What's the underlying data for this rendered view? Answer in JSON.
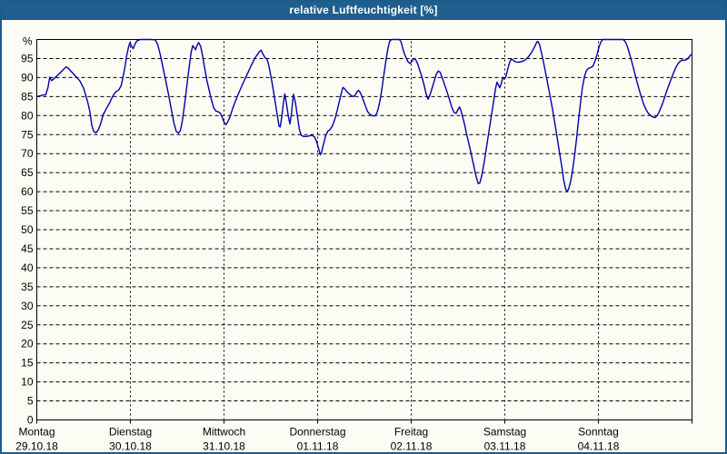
{
  "window": {
    "title": "relative Luftfeuchtigkeit [%]"
  },
  "colors": {
    "titlebar": "#1e5f8e",
    "window_border": "#1d5c89",
    "background": "#fcfcf5",
    "axis": "#000000",
    "grid": "#000000",
    "line": "#0000a8",
    "title_text": "#ffffff",
    "label_text": "#000000"
  },
  "chart_data": {
    "type": "line",
    "title": "relative Luftfeuchtigkeit [%]",
    "ylabel": "%",
    "y_axis_symbol": "%",
    "ylim": [
      0,
      100
    ],
    "yticks": [
      0,
      5,
      10,
      15,
      20,
      25,
      30,
      35,
      40,
      45,
      50,
      55,
      60,
      65,
      70,
      75,
      80,
      85,
      90,
      95
    ],
    "grid": "dashed",
    "x_unit": "hours",
    "xlim": [
      0,
      168
    ],
    "hours_per_day": 24,
    "days": [
      {
        "label": "Montag",
        "date": "29.10.18"
      },
      {
        "label": "Dienstag",
        "date": "30.10.18"
      },
      {
        "label": "Mittwoch",
        "date": "31.10.18"
      },
      {
        "label": "Donnerstag",
        "date": "01.11.18"
      },
      {
        "label": "Freitag",
        "date": "02.11.18"
      },
      {
        "label": "Samstag",
        "date": "03.11.18"
      },
      {
        "label": "Sonntag",
        "date": "04.11.18"
      }
    ],
    "legend": "none",
    "series": [
      {
        "name": "relative Luftfeuchtigkeit",
        "color": "#0000a8",
        "points": [
          [
            0,
            85
          ],
          [
            0.8,
            85.2
          ],
          [
            1.6,
            85.4
          ],
          [
            2.3,
            85.5
          ],
          [
            2.9,
            87.5
          ],
          [
            3.3,
            90.1
          ],
          [
            3.8,
            89.2
          ],
          [
            4.4,
            89.7
          ],
          [
            5,
            90.3
          ],
          [
            6,
            91.3
          ],
          [
            7,
            92.3
          ],
          [
            7.5,
            92.8
          ],
          [
            8,
            92.5
          ],
          [
            9,
            91.4
          ],
          [
            10,
            90.3
          ],
          [
            11,
            89.2
          ],
          [
            12,
            87.2
          ],
          [
            13,
            83.8
          ],
          [
            13.6,
            81
          ],
          [
            14.1,
            77.5
          ],
          [
            14.6,
            75.8
          ],
          [
            15.2,
            75.5
          ],
          [
            15.8,
            76.3
          ],
          [
            16.4,
            78
          ],
          [
            17,
            80.2
          ],
          [
            17.8,
            81.8
          ],
          [
            18.6,
            83.2
          ],
          [
            19.4,
            85
          ],
          [
            20.2,
            86.2
          ],
          [
            21,
            86.7
          ],
          [
            21.6,
            87.8
          ],
          [
            22.1,
            90
          ],
          [
            22.6,
            92.8
          ],
          [
            23,
            95.5
          ],
          [
            23.5,
            98
          ],
          [
            23.9,
            99.2
          ],
          [
            24.3,
            98.2
          ],
          [
            24.7,
            97.6
          ],
          [
            25.1,
            98.6
          ],
          [
            25.6,
            99.6
          ],
          [
            26.5,
            100
          ],
          [
            28,
            100
          ],
          [
            29.5,
            100
          ],
          [
            30.4,
            99.9
          ],
          [
            31,
            98.7
          ],
          [
            31.6,
            96.3
          ],
          [
            32.2,
            93.4
          ],
          [
            33,
            89.5
          ],
          [
            33.8,
            85.4
          ],
          [
            34.5,
            81.5
          ],
          [
            35.2,
            77.8
          ],
          [
            35.8,
            75.8
          ],
          [
            36.3,
            75.4
          ],
          [
            36.8,
            76
          ],
          [
            37.3,
            78.5
          ],
          [
            37.9,
            83
          ],
          [
            38.5,
            88
          ],
          [
            39.1,
            93
          ],
          [
            39.6,
            96.8
          ],
          [
            40,
            98.4
          ],
          [
            40.4,
            97.8
          ],
          [
            40.7,
            97.3
          ],
          [
            41.1,
            98.5
          ],
          [
            41.5,
            99.2
          ],
          [
            42,
            98.2
          ],
          [
            42.5,
            95.8
          ],
          [
            43,
            92.8
          ],
          [
            43.6,
            89.3
          ],
          [
            44.2,
            86.6
          ],
          [
            44.8,
            84
          ],
          [
            45.4,
            82
          ],
          [
            45.9,
            81.2
          ],
          [
            46.5,
            81
          ],
          [
            47,
            80.7
          ],
          [
            47.5,
            79.6
          ],
          [
            48,
            78.3
          ],
          [
            48.5,
            77.6
          ],
          [
            49,
            78.4
          ],
          [
            49.6,
            79.9
          ],
          [
            50.2,
            81.8
          ],
          [
            51,
            84
          ],
          [
            52,
            86.5
          ],
          [
            53,
            88.8
          ],
          [
            54,
            91
          ],
          [
            55,
            93.2
          ],
          [
            56,
            95.2
          ],
          [
            57,
            96.7
          ],
          [
            57.5,
            97.2
          ],
          [
            58,
            96.2
          ],
          [
            58.5,
            95.2
          ],
          [
            59,
            94.9
          ],
          [
            59.4,
            93.6
          ],
          [
            59.8,
            91.6
          ],
          [
            60.2,
            89.3
          ],
          [
            60.7,
            86.3
          ],
          [
            61.2,
            83
          ],
          [
            61.7,
            79.8
          ],
          [
            62.1,
            77.3
          ],
          [
            62.4,
            77
          ],
          [
            62.8,
            79.5
          ],
          [
            63.2,
            83
          ],
          [
            63.6,
            85.7
          ],
          [
            64,
            83.2
          ],
          [
            64.5,
            79.8
          ],
          [
            64.9,
            77.8
          ],
          [
            65.3,
            80.5
          ],
          [
            65.8,
            85.6
          ],
          [
            66.3,
            83.5
          ],
          [
            66.8,
            80
          ],
          [
            67.3,
            76.5
          ],
          [
            67.8,
            74.8
          ],
          [
            68.4,
            74.5
          ],
          [
            69.2,
            74.5
          ],
          [
            70,
            74.7
          ],
          [
            70.6,
            74.8
          ],
          [
            71.2,
            74.4
          ],
          [
            71.7,
            73.3
          ],
          [
            72.2,
            71.5
          ],
          [
            72.7,
            69.7
          ],
          [
            73,
            70.3
          ],
          [
            73.4,
            72
          ],
          [
            74,
            74.5
          ],
          [
            74.6,
            75.9
          ],
          [
            75.2,
            76.3
          ],
          [
            75.8,
            77.3
          ],
          [
            76.4,
            79
          ],
          [
            77,
            81.3
          ],
          [
            77.6,
            83.8
          ],
          [
            78.1,
            86
          ],
          [
            78.5,
            87.4
          ],
          [
            79,
            87
          ],
          [
            79.5,
            86.3
          ],
          [
            80.1,
            85.7
          ],
          [
            80.7,
            85.2
          ],
          [
            81.2,
            85
          ],
          [
            81.7,
            85.5
          ],
          [
            82.2,
            86.4
          ],
          [
            82.5,
            86.6
          ],
          [
            82.9,
            86.1
          ],
          [
            83.3,
            85.2
          ],
          [
            83.8,
            83.9
          ],
          [
            84.3,
            82.4
          ],
          [
            84.8,
            81.1
          ],
          [
            85.4,
            80.3
          ],
          [
            86,
            80
          ],
          [
            86.6,
            79.9
          ],
          [
            87.1,
            80.4
          ],
          [
            87.6,
            82
          ],
          [
            88.1,
            84.5
          ],
          [
            88.6,
            87.8
          ],
          [
            89.1,
            91.5
          ],
          [
            89.6,
            95
          ],
          [
            90.1,
            98
          ],
          [
            90.5,
            99.6
          ],
          [
            91,
            100
          ],
          [
            92,
            100
          ],
          [
            93,
            100
          ],
          [
            93.4,
            99.4
          ],
          [
            93.8,
            97.8
          ],
          [
            94.2,
            96.4
          ],
          [
            94.7,
            95.2
          ],
          [
            95.2,
            94.1
          ],
          [
            95.7,
            93.7
          ],
          [
            96.2,
            94.3
          ],
          [
            96.7,
            95
          ],
          [
            97.1,
            94.8
          ],
          [
            97.6,
            93.7
          ],
          [
            98.1,
            92.2
          ],
          [
            98.7,
            90.3
          ],
          [
            99.3,
            88
          ],
          [
            99.8,
            85.8
          ],
          [
            100.3,
            84.3
          ],
          [
            100.8,
            85.4
          ],
          [
            101.3,
            87
          ],
          [
            101.9,
            89
          ],
          [
            102.4,
            90.8
          ],
          [
            102.9,
            91.7
          ],
          [
            103.4,
            91.4
          ],
          [
            104,
            89.8
          ],
          [
            104.6,
            88
          ],
          [
            105.2,
            86.2
          ],
          [
            105.8,
            84.2
          ],
          [
            106.4,
            82.2
          ],
          [
            107,
            80.8
          ],
          [
            107.5,
            80.6
          ],
          [
            108,
            81.6
          ],
          [
            108.4,
            82.3
          ],
          [
            108.8,
            81.2
          ],
          [
            109.2,
            79.6
          ],
          [
            109.7,
            77.6
          ],
          [
            110.2,
            75.2
          ],
          [
            110.8,
            72.6
          ],
          [
            111.4,
            69.8
          ],
          [
            112,
            67
          ],
          [
            112.6,
            64.2
          ],
          [
            113.2,
            62.1
          ],
          [
            113.6,
            62.3
          ],
          [
            114.1,
            64.3
          ],
          [
            114.7,
            67.7
          ],
          [
            115.3,
            71.6
          ],
          [
            115.9,
            75.6
          ],
          [
            116.5,
            79.6
          ],
          [
            117.1,
            83.6
          ],
          [
            117.6,
            87
          ],
          [
            118,
            88.8
          ],
          [
            118.4,
            88
          ],
          [
            118.7,
            87.3
          ],
          [
            119.1,
            88.4
          ],
          [
            119.5,
            90
          ],
          [
            119.9,
            89.6
          ],
          [
            120.3,
            90.3
          ],
          [
            120.8,
            92.4
          ],
          [
            121.3,
            94.2
          ],
          [
            121.7,
            94.9
          ],
          [
            122.2,
            94.5
          ],
          [
            122.8,
            94.1
          ],
          [
            123.5,
            94
          ],
          [
            124.3,
            94.2
          ],
          [
            125.2,
            94.6
          ],
          [
            126,
            95.4
          ],
          [
            126.8,
            96.5
          ],
          [
            127.6,
            98
          ],
          [
            128.2,
            99.3
          ],
          [
            128.5,
            99.5
          ],
          [
            128.9,
            98.7
          ],
          [
            129.3,
            97
          ],
          [
            129.8,
            94.6
          ],
          [
            130.4,
            91.6
          ],
          [
            131,
            88.4
          ],
          [
            131.6,
            85.2
          ],
          [
            132.2,
            81.8
          ],
          [
            132.8,
            78.2
          ],
          [
            133.4,
            74.4
          ],
          [
            134,
            70.4
          ],
          [
            134.6,
            66.6
          ],
          [
            135.1,
            63
          ],
          [
            135.6,
            60.7
          ],
          [
            136,
            60
          ],
          [
            136.4,
            60.8
          ],
          [
            136.9,
            62.8
          ],
          [
            137.4,
            65.8
          ],
          [
            137.9,
            69.6
          ],
          [
            138.4,
            74
          ],
          [
            138.9,
            78.8
          ],
          [
            139.4,
            83.4
          ],
          [
            139.9,
            87.4
          ],
          [
            140.4,
            90.2
          ],
          [
            140.9,
            91.8
          ],
          [
            141.4,
            92.4
          ],
          [
            142,
            92.6
          ],
          [
            142.6,
            93
          ],
          [
            143.1,
            94.2
          ],
          [
            143.6,
            95.9
          ],
          [
            144.1,
            97.8
          ],
          [
            144.6,
            99.3
          ],
          [
            145.1,
            100
          ],
          [
            146,
            100
          ],
          [
            147.5,
            100
          ],
          [
            149,
            100
          ],
          [
            150.4,
            100
          ],
          [
            150.9,
            99.4
          ],
          [
            151.4,
            98.2
          ],
          [
            152,
            96.2
          ],
          [
            152.6,
            94
          ],
          [
            153.2,
            91.6
          ],
          [
            153.8,
            89.2
          ],
          [
            154.4,
            87
          ],
          [
            155,
            84.9
          ],
          [
            155.6,
            83
          ],
          [
            156.2,
            81.6
          ],
          [
            156.8,
            80.6
          ],
          [
            157.4,
            80
          ],
          [
            158,
            79.6
          ],
          [
            158.6,
            79.5
          ],
          [
            159.2,
            80.2
          ],
          [
            159.8,
            81.5
          ],
          [
            160.4,
            83
          ],
          [
            161,
            84.9
          ],
          [
            161.6,
            86.7
          ],
          [
            162.2,
            88.4
          ],
          [
            162.8,
            90
          ],
          [
            163.4,
            91.6
          ],
          [
            164,
            92.9
          ],
          [
            164.5,
            93.8
          ],
          [
            165,
            94.3
          ],
          [
            165.5,
            94.6
          ],
          [
            166,
            94.5
          ],
          [
            166.4,
            94.6
          ],
          [
            166.9,
            95
          ],
          [
            167.4,
            95.6
          ],
          [
            168,
            96.2
          ]
        ]
      }
    ]
  }
}
